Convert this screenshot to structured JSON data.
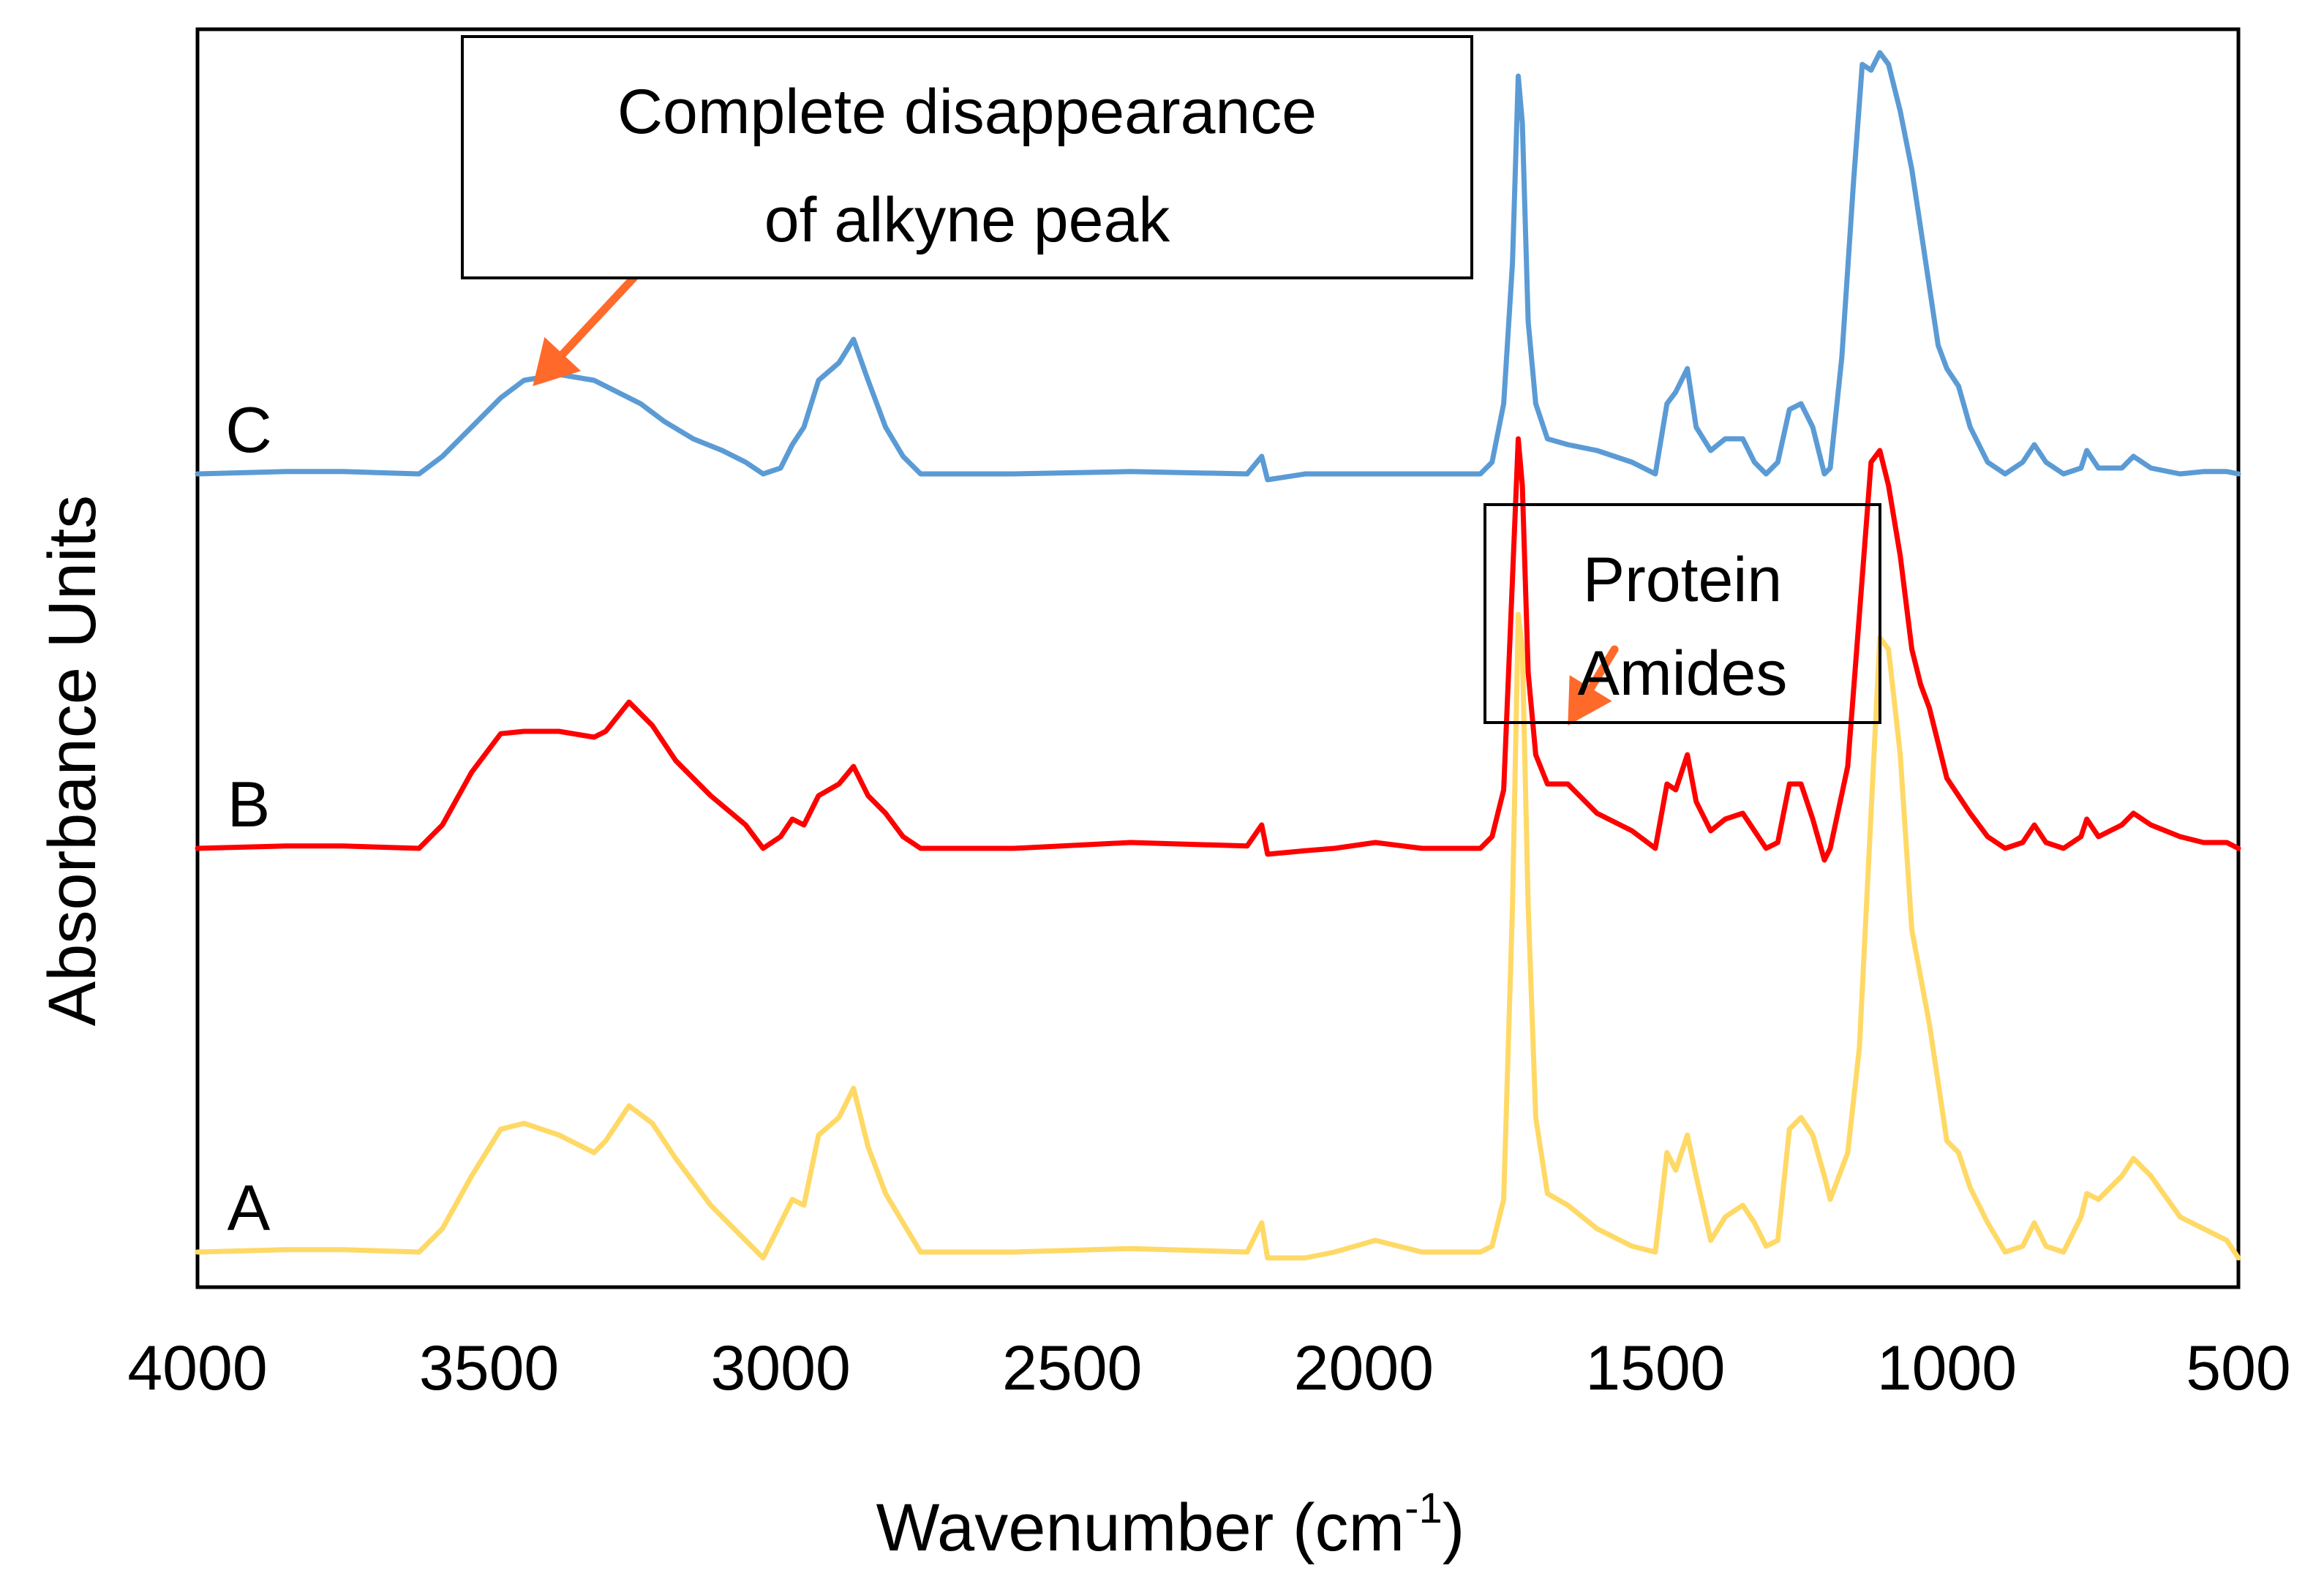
{
  "chart_data": {
    "type": "line",
    "title": "",
    "xlabel": "Wavenumber (cm",
    "xlabel_sup": "-1",
    "xlabel_suffix": ")",
    "ylabel": "Absorbance Units",
    "xlim": [
      4000,
      500
    ],
    "x_reversed": true,
    "ylim": [
      -0.25,
      10.5
    ],
    "grid": false,
    "y_ticks_shown": false,
    "x_ticks": [
      4000,
      3500,
      3000,
      2500,
      2000,
      1500,
      1000,
      500
    ],
    "x_tick_labels": [
      "4000",
      "3500",
      "3000",
      "2500",
      "2000",
      "1500",
      "1000",
      "500"
    ],
    "series": [
      {
        "name": "A",
        "color": "#FFD966",
        "points": [
          [
            4000,
            0.05
          ],
          [
            3850,
            0.07
          ],
          [
            3750,
            0.07
          ],
          [
            3620,
            0.05
          ],
          [
            3580,
            0.25
          ],
          [
            3530,
            0.7
          ],
          [
            3480,
            1.1
          ],
          [
            3440,
            1.15
          ],
          [
            3380,
            1.05
          ],
          [
            3320,
            0.9
          ],
          [
            3300,
            1.0
          ],
          [
            3260,
            1.3
          ],
          [
            3220,
            1.15
          ],
          [
            3180,
            0.85
          ],
          [
            3120,
            0.45
          ],
          [
            3060,
            0.15
          ],
          [
            3030,
            0.0
          ],
          [
            3000,
            0.3
          ],
          [
            2980,
            0.5
          ],
          [
            2960,
            0.45
          ],
          [
            2935,
            1.05
          ],
          [
            2900,
            1.2
          ],
          [
            2875,
            1.45
          ],
          [
            2850,
            0.95
          ],
          [
            2820,
            0.55
          ],
          [
            2790,
            0.3
          ],
          [
            2760,
            0.05
          ],
          [
            2600,
            0.05
          ],
          [
            2400,
            0.08
          ],
          [
            2200,
            0.05
          ],
          [
            2175,
            0.3
          ],
          [
            2165,
            0.0
          ],
          [
            2100,
            0.0
          ],
          [
            2050,
            0.05
          ],
          [
            1980,
            0.15
          ],
          [
            1900,
            0.05
          ],
          [
            1800,
            0.05
          ],
          [
            1780,
            0.1
          ],
          [
            1760,
            0.5
          ],
          [
            1745,
            3.0
          ],
          [
            1735,
            5.5
          ],
          [
            1728,
            5.2
          ],
          [
            1718,
            3.0
          ],
          [
            1705,
            1.2
          ],
          [
            1685,
            0.55
          ],
          [
            1650,
            0.45
          ],
          [
            1600,
            0.25
          ],
          [
            1540,
            0.1
          ],
          [
            1500,
            0.05
          ],
          [
            1480,
            0.9
          ],
          [
            1465,
            0.75
          ],
          [
            1445,
            1.05
          ],
          [
            1430,
            0.7
          ],
          [
            1405,
            0.15
          ],
          [
            1380,
            0.35
          ],
          [
            1350,
            0.45
          ],
          [
            1330,
            0.3
          ],
          [
            1310,
            0.1
          ],
          [
            1290,
            0.15
          ],
          [
            1270,
            1.1
          ],
          [
            1250,
            1.2
          ],
          [
            1230,
            1.05
          ],
          [
            1210,
            0.7
          ],
          [
            1200,
            0.5
          ],
          [
            1170,
            0.9
          ],
          [
            1150,
            1.8
          ],
          [
            1130,
            3.8
          ],
          [
            1115,
            5.3
          ],
          [
            1100,
            5.2
          ],
          [
            1080,
            4.3
          ],
          [
            1060,
            2.8
          ],
          [
            1045,
            2.4
          ],
          [
            1030,
            2.0
          ],
          [
            1015,
            1.5
          ],
          [
            1000,
            1.0
          ],
          [
            980,
            0.9
          ],
          [
            960,
            0.6
          ],
          [
            930,
            0.3
          ],
          [
            900,
            0.05
          ],
          [
            870,
            0.1
          ],
          [
            850,
            0.3
          ],
          [
            830,
            0.1
          ],
          [
            800,
            0.05
          ],
          [
            770,
            0.35
          ],
          [
            760,
            0.55
          ],
          [
            740,
            0.5
          ],
          [
            700,
            0.7
          ],
          [
            680,
            0.85
          ],
          [
            650,
            0.7
          ],
          [
            600,
            0.35
          ],
          [
            560,
            0.25
          ],
          [
            520,
            0.15
          ],
          [
            500,
            0.0
          ]
        ]
      },
      {
        "name": "B",
        "color": "#FF0000",
        "points": [
          [
            4000,
            3.5
          ],
          [
            3850,
            3.52
          ],
          [
            3750,
            3.52
          ],
          [
            3620,
            3.5
          ],
          [
            3580,
            3.7
          ],
          [
            3530,
            4.15
          ],
          [
            3480,
            4.48
          ],
          [
            3440,
            4.5
          ],
          [
            3380,
            4.5
          ],
          [
            3320,
            4.45
          ],
          [
            3300,
            4.5
          ],
          [
            3260,
            4.75
          ],
          [
            3220,
            4.55
          ],
          [
            3180,
            4.25
          ],
          [
            3120,
            3.95
          ],
          [
            3060,
            3.7
          ],
          [
            3030,
            3.5
          ],
          [
            3000,
            3.6
          ],
          [
            2980,
            3.75
          ],
          [
            2960,
            3.7
          ],
          [
            2935,
            3.95
          ],
          [
            2900,
            4.05
          ],
          [
            2875,
            4.2
          ],
          [
            2850,
            3.95
          ],
          [
            2820,
            3.8
          ],
          [
            2790,
            3.6
          ],
          [
            2760,
            3.5
          ],
          [
            2600,
            3.5
          ],
          [
            2400,
            3.55
          ],
          [
            2200,
            3.52
          ],
          [
            2175,
            3.7
          ],
          [
            2165,
            3.45
          ],
          [
            2100,
            3.48
          ],
          [
            2050,
            3.5
          ],
          [
            1980,
            3.55
          ],
          [
            1900,
            3.5
          ],
          [
            1800,
            3.5
          ],
          [
            1780,
            3.6
          ],
          [
            1760,
            4.0
          ],
          [
            1745,
            5.8
          ],
          [
            1735,
            7.0
          ],
          [
            1728,
            6.6
          ],
          [
            1718,
            5.0
          ],
          [
            1705,
            4.3
          ],
          [
            1685,
            4.05
          ],
          [
            1650,
            4.05
          ],
          [
            1600,
            3.8
          ],
          [
            1540,
            3.65
          ],
          [
            1500,
            3.5
          ],
          [
            1480,
            4.05
          ],
          [
            1465,
            4.0
          ],
          [
            1445,
            4.3
          ],
          [
            1430,
            3.9
          ],
          [
            1405,
            3.65
          ],
          [
            1380,
            3.75
          ],
          [
            1350,
            3.8
          ],
          [
            1330,
            3.65
          ],
          [
            1310,
            3.5
          ],
          [
            1290,
            3.55
          ],
          [
            1270,
            4.05
          ],
          [
            1250,
            4.05
          ],
          [
            1230,
            3.75
          ],
          [
            1210,
            3.4
          ],
          [
            1200,
            3.5
          ],
          [
            1170,
            4.2
          ],
          [
            1150,
            5.5
          ],
          [
            1130,
            6.8
          ],
          [
            1115,
            6.9
          ],
          [
            1100,
            6.6
          ],
          [
            1080,
            6.0
          ],
          [
            1060,
            5.2
          ],
          [
            1045,
            4.9
          ],
          [
            1030,
            4.7
          ],
          [
            1015,
            4.4
          ],
          [
            1000,
            4.1
          ],
          [
            980,
            3.95
          ],
          [
            960,
            3.8
          ],
          [
            930,
            3.6
          ],
          [
            900,
            3.5
          ],
          [
            870,
            3.55
          ],
          [
            850,
            3.7
          ],
          [
            830,
            3.55
          ],
          [
            800,
            3.5
          ],
          [
            770,
            3.6
          ],
          [
            760,
            3.75
          ],
          [
            740,
            3.6
          ],
          [
            700,
            3.7
          ],
          [
            680,
            3.8
          ],
          [
            650,
            3.7
          ],
          [
            600,
            3.6
          ],
          [
            560,
            3.55
          ],
          [
            520,
            3.55
          ],
          [
            500,
            3.5
          ]
        ]
      },
      {
        "name": "C",
        "color": "#5B9BD5",
        "points": [
          [
            4000,
            6.7
          ],
          [
            3850,
            6.72
          ],
          [
            3750,
            6.72
          ],
          [
            3620,
            6.7
          ],
          [
            3580,
            6.85
          ],
          [
            3530,
            7.1
          ],
          [
            3480,
            7.35
          ],
          [
            3440,
            7.5
          ],
          [
            3380,
            7.55
          ],
          [
            3320,
            7.5
          ],
          [
            3280,
            7.4
          ],
          [
            3240,
            7.3
          ],
          [
            3200,
            7.15
          ],
          [
            3150,
            7.0
          ],
          [
            3100,
            6.9
          ],
          [
            3060,
            6.8
          ],
          [
            3030,
            6.7
          ],
          [
            3000,
            6.75
          ],
          [
            2980,
            6.95
          ],
          [
            2960,
            7.1
          ],
          [
            2935,
            7.5
          ],
          [
            2900,
            7.65
          ],
          [
            2875,
            7.85
          ],
          [
            2850,
            7.5
          ],
          [
            2820,
            7.1
          ],
          [
            2790,
            6.85
          ],
          [
            2760,
            6.7
          ],
          [
            2600,
            6.7
          ],
          [
            2400,
            6.72
          ],
          [
            2200,
            6.7
          ],
          [
            2175,
            6.85
          ],
          [
            2165,
            6.65
          ],
          [
            2100,
            6.7
          ],
          [
            2000,
            6.7
          ],
          [
            1900,
            6.7
          ],
          [
            1800,
            6.7
          ],
          [
            1780,
            6.8
          ],
          [
            1760,
            7.3
          ],
          [
            1745,
            8.5
          ],
          [
            1735,
            10.1
          ],
          [
            1728,
            9.7
          ],
          [
            1718,
            8.0
          ],
          [
            1705,
            7.3
          ],
          [
            1685,
            7.0
          ],
          [
            1650,
            6.95
          ],
          [
            1600,
            6.9
          ],
          [
            1540,
            6.8
          ],
          [
            1500,
            6.7
          ],
          [
            1480,
            7.3
          ],
          [
            1465,
            7.4
          ],
          [
            1445,
            7.6
          ],
          [
            1430,
            7.1
          ],
          [
            1405,
            6.9
          ],
          [
            1380,
            7.0
          ],
          [
            1350,
            7.0
          ],
          [
            1330,
            6.8
          ],
          [
            1310,
            6.7
          ],
          [
            1290,
            6.8
          ],
          [
            1270,
            7.25
          ],
          [
            1250,
            7.3
          ],
          [
            1230,
            7.1
          ],
          [
            1210,
            6.7
          ],
          [
            1200,
            6.75
          ],
          [
            1180,
            7.7
          ],
          [
            1160,
            9.2
          ],
          [
            1145,
            10.2
          ],
          [
            1130,
            10.15
          ],
          [
            1115,
            10.3
          ],
          [
            1100,
            10.2
          ],
          [
            1080,
            9.8
          ],
          [
            1060,
            9.3
          ],
          [
            1045,
            8.8
          ],
          [
            1030,
            8.3
          ],
          [
            1015,
            7.8
          ],
          [
            1000,
            7.6
          ],
          [
            980,
            7.45
          ],
          [
            960,
            7.1
          ],
          [
            930,
            6.8
          ],
          [
            900,
            6.7
          ],
          [
            870,
            6.8
          ],
          [
            850,
            6.95
          ],
          [
            830,
            6.8
          ],
          [
            800,
            6.7
          ],
          [
            770,
            6.75
          ],
          [
            760,
            6.9
          ],
          [
            740,
            6.75
          ],
          [
            700,
            6.75
          ],
          [
            680,
            6.85
          ],
          [
            650,
            6.75
          ],
          [
            600,
            6.7
          ],
          [
            560,
            6.72
          ],
          [
            520,
            6.72
          ],
          [
            500,
            6.7
          ]
        ]
      }
    ],
    "annotations": [
      {
        "text_lines": [
          "Complete disappearance",
          "of alkyne peak"
        ],
        "arrow_color": "#FF6A2B",
        "arrow_from": [
          3210,
          8.6
        ],
        "arrow_to": [
          3425,
          7.45
        ]
      },
      {
        "text_lines": [
          "Protein",
          "Amides"
        ],
        "arrow_color": "#FF6A2B",
        "arrow_from": [
          1570,
          5.2
        ],
        "arrow_to": [
          1650,
          4.55
        ]
      }
    ]
  }
}
